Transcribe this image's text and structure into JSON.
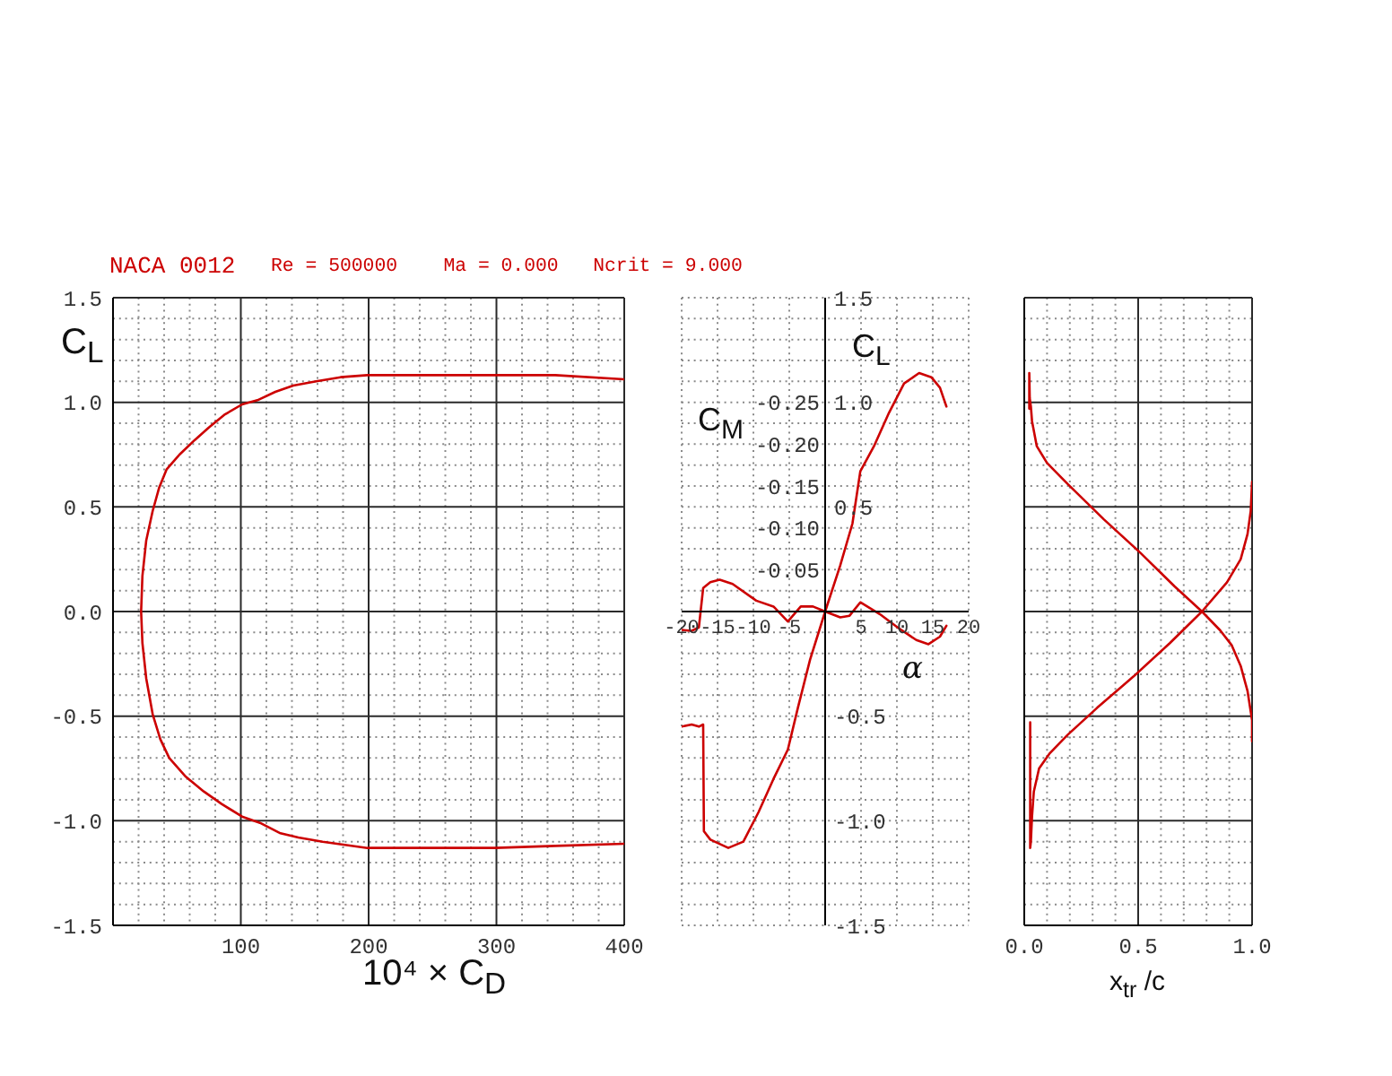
{
  "chart_data": [
    {
      "type": "line",
      "title": "NACA 0012",
      "subtitle": "Re = 500000    Ma = 0.000   Ncrit = 9.000",
      "xlabel": "10⁴ × C$_{D}$",
      "ylabel": "C$_{L}$",
      "x": [
        400,
        346,
        299,
        250,
        199,
        164,
        145,
        131,
        115,
        101,
        85,
        71,
        57,
        44,
        37,
        31,
        26,
        23,
        22,
        23,
        26,
        31,
        36,
        42,
        52,
        64,
        75,
        87,
        101,
        113,
        127,
        141,
        159,
        178,
        199,
        250,
        299,
        346,
        400
      ],
      "series": [
        {
          "color": "#cc0000",
          "values": [
            -1.11,
            -1.12,
            -1.13,
            -1.13,
            -1.13,
            -1.1,
            -1.08,
            -1.06,
            -1.01,
            -0.98,
            -0.92,
            -0.86,
            -0.79,
            -0.7,
            -0.61,
            -0.49,
            -0.32,
            -0.15,
            0,
            0.17,
            0.34,
            0.48,
            0.59,
            0.68,
            0.75,
            0.82,
            0.88,
            0.94,
            0.99,
            1.01,
            1.05,
            1.08,
            1.1,
            1.12,
            1.13,
            1.13,
            1.13,
            1.13,
            1.11
          ]
        }
      ],
      "xlim": [
        0,
        400
      ],
      "xticks": [
        {
          "value": 20,
          "label": null
        },
        {
          "value": 40,
          "label": null
        },
        {
          "value": 60,
          "label": null
        },
        {
          "value": 80,
          "label": null
        },
        100,
        {
          "value": 120,
          "label": null
        },
        {
          "value": 140,
          "label": null
        },
        {
          "value": 160,
          "label": null
        },
        {
          "value": 180,
          "label": null
        },
        200,
        {
          "value": 220,
          "label": null
        },
        {
          "value": 240,
          "label": null
        },
        {
          "value": 260,
          "label": null
        },
        {
          "value": 280,
          "label": null
        },
        300,
        {
          "value": 320,
          "label": null
        },
        {
          "value": 340,
          "label": null
        },
        {
          "value": 360,
          "label": null
        },
        {
          "value": 380,
          "label": null
        },
        400
      ],
      "ylim": [
        -1.5,
        1.5
      ],
      "yticks": [
        -1.5,
        {
          "value": -1.4,
          "label": null
        },
        {
          "value": -1.3,
          "label": null
        },
        {
          "value": -1.2,
          "label": null
        },
        {
          "value": -1.1,
          "label": null
        },
        {
          "value": -1,
          "label": "-1.0"
        },
        {
          "value": -0.9,
          "label": null
        },
        {
          "value": -0.8,
          "label": null
        },
        {
          "value": -0.7,
          "label": null
        },
        {
          "value": -0.6,
          "label": null
        },
        -0.5,
        {
          "value": -0.4,
          "label": null
        },
        {
          "value": -0.3,
          "label": null
        },
        {
          "value": -0.2,
          "label": null
        },
        {
          "value": -0.1,
          "label": null
        },
        {
          "value": 0,
          "label": "0.0"
        },
        {
          "value": 0.1,
          "label": null
        },
        {
          "value": 0.2,
          "label": null
        },
        {
          "value": 0.3,
          "label": null
        },
        {
          "value": 0.4,
          "label": null
        },
        0.5,
        {
          "value": 0.6,
          "label": null
        },
        {
          "value": 0.7,
          "label": null
        },
        {
          "value": 0.8,
          "label": null
        },
        {
          "value": 0.9,
          "label": null
        },
        {
          "value": 1,
          "label": "1.0"
        },
        {
          "value": 1.1,
          "label": null
        },
        {
          "value": 1.2,
          "label": null
        },
        {
          "value": 1.3,
          "label": null
        },
        {
          "value": 1.4,
          "label": null
        },
        1.5
      ],
      "grid": true
    },
    {
      "type": "line",
      "xlabel": "α",
      "ylabel": "C$_{L}$",
      "y2label": "C$_{M}$",
      "series": [
        {
          "color": "#cc0000",
          "x": [
            -20,
            -18.6,
            -17.6,
            -17,
            -16.9,
            -16,
            -13.5,
            -11.4,
            -9.3,
            -7.2,
            -5.2,
            -3.8,
            -2.1,
            0,
            2.1,
            3.8,
            4.9,
            6.8,
            8.9,
            11,
            13.1,
            14.8,
            16,
            16.9
          ],
          "values": [
            -0.55,
            -0.54,
            -0.55,
            -0.54,
            -1.05,
            -1.09,
            -1.13,
            -1.1,
            -0.96,
            -0.8,
            -0.66,
            -0.46,
            -0.23,
            0,
            0.22,
            0.42,
            0.67,
            0.79,
            0.95,
            1.09,
            1.14,
            1.12,
            1.07,
            0.98
          ]
        },
        {
          "color": "#cc0000",
          "axis": "y2",
          "x": [
            -20,
            -18.6,
            -17.6,
            -17,
            -16,
            -14.7,
            -12.9,
            -9.6,
            -7.2,
            -5.2,
            -3.4,
            -1.7,
            0,
            2.1,
            3.4,
            4.9,
            7.6,
            10.1,
            12.7,
            14.4,
            16,
            16.9
          ],
          "values": [
            0.022,
            0.023,
            0.019,
            -0.028,
            -0.035,
            -0.038,
            -0.033,
            -0.013,
            -0.006,
            0.012,
            -0.006,
            -0.006,
            0,
            0.007,
            0.005,
            -0.011,
            0.003,
            0.019,
            0.034,
            0.039,
            0.03,
            0.017
          ]
        }
      ],
      "xlim": [
        -20,
        20
      ],
      "xticks": [
        -20,
        -15,
        -10,
        -5,
        5,
        10,
        15,
        20
      ],
      "ylim": [
        -1.5,
        1.5
      ],
      "yticks": [
        -1.5,
        {
          "value": -1.4,
          "label": null
        },
        {
          "value": -1.3,
          "label": null
        },
        {
          "value": -1.2,
          "label": null
        },
        {
          "value": -1.1,
          "label": null
        },
        {
          "value": -1,
          "label": "-1.0"
        },
        {
          "value": -0.9,
          "label": null
        },
        {
          "value": -0.8,
          "label": null
        },
        {
          "value": -0.7,
          "label": null
        },
        {
          "value": -0.6,
          "label": null
        },
        -0.5,
        {
          "value": -0.4,
          "label": null
        },
        {
          "value": -0.3,
          "label": null
        },
        {
          "value": -0.2,
          "label": null
        },
        {
          "value": -0.1,
          "label": null
        },
        {
          "value": 0.1,
          "label": null
        },
        {
          "value": 0.2,
          "label": null
        },
        {
          "value": 0.3,
          "label": null
        },
        {
          "value": 0.4,
          "label": null
        },
        0.5,
        {
          "value": 0.6,
          "label": null
        },
        {
          "value": 0.7,
          "label": null
        },
        {
          "value": 0.8,
          "label": null
        },
        {
          "value": 0.9,
          "label": null
        },
        {
          "value": 1,
          "label": "1.0"
        },
        {
          "value": 1.1,
          "label": null
        },
        {
          "value": 1.2,
          "label": null
        },
        {
          "value": 1.3,
          "label": null
        },
        {
          "value": 1.4,
          "label": null
        },
        1.5
      ],
      "y2lim": [
        0.375,
        -0.375
      ],
      "y2ticks": [
        -0.25,
        {
          "value": -0.2,
          "label": "-0.20"
        },
        -0.15,
        {
          "value": -0.1,
          "label": "-0.10"
        },
        -0.05
      ],
      "grid": true
    },
    {
      "type": "line",
      "xlabel": "x$_{tr}$ /c",
      "series": [
        {
          "color": "#cc0000",
          "x": [
            1,
            1,
            0.98,
            0.95,
            0.91,
            0.86,
            0.78,
            0.66,
            0.51,
            0.35,
            0.19,
            0.1,
            0.055,
            0.034,
            0.029,
            0.024,
            0.022,
            0.022
          ],
          "values": [
            -0.62,
            -0.52,
            -0.38,
            -0.26,
            -0.16,
            -0.09,
            0,
            0.12,
            0.28,
            0.44,
            0.61,
            0.71,
            0.79,
            0.91,
            0.98,
            1.02,
            1.14,
            0.97
          ]
        },
        {
          "color": "#cc0000",
          "x": [
            0.026,
            0.026,
            0.029,
            0.034,
            0.042,
            0.065,
            0.11,
            0.19,
            0.32,
            0.48,
            0.64,
            0.78,
            0.89,
            0.95,
            0.98,
            0.994,
            1
          ],
          "values": [
            -0.53,
            -1.13,
            -1.1,
            -0.98,
            -0.86,
            -0.75,
            -0.68,
            -0.59,
            -0.46,
            -0.31,
            -0.15,
            0,
            0.14,
            0.25,
            0.37,
            0.48,
            0.62
          ]
        }
      ],
      "xlim": [
        0,
        1
      ],
      "xticks": [
        {
          "value": 0,
          "label": "0.0"
        },
        {
          "value": 0.1,
          "label": null
        },
        {
          "value": 0.2,
          "label": null
        },
        {
          "value": 0.3,
          "label": null
        },
        {
          "value": 0.4,
          "label": null
        },
        0.5,
        {
          "value": 0.6,
          "label": null
        },
        {
          "value": 0.7,
          "label": null
        },
        {
          "value": 0.8,
          "label": null
        },
        {
          "value": 0.9,
          "label": null
        },
        {
          "value": 1,
          "label": "1.0"
        }
      ],
      "ylim": [
        -1.5,
        1.5
      ],
      "yticks": [
        -1.5,
        {
          "value": -1.4,
          "label": null
        },
        {
          "value": -1.3,
          "label": null
        },
        {
          "value": -1.2,
          "label": null
        },
        {
          "value": -1.1,
          "label": null
        },
        -1,
        {
          "value": -0.9,
          "label": null
        },
        {
          "value": -0.8,
          "label": null
        },
        {
          "value": -0.7,
          "label": null
        },
        {
          "value": -0.6,
          "label": null
        },
        -0.5,
        {
          "value": -0.4,
          "label": null
        },
        {
          "value": -0.3,
          "label": null
        },
        {
          "value": -0.2,
          "label": null
        },
        {
          "value": -0.1,
          "label": null
        },
        0,
        {
          "value": 0.1,
          "label": null
        },
        {
          "value": 0.2,
          "label": null
        },
        {
          "value": 0.3,
          "label": null
        },
        {
          "value": 0.4,
          "label": null
        },
        0.5,
        {
          "value": 0.6,
          "label": null
        },
        {
          "value": 0.7,
          "label": null
        },
        {
          "value": 0.8,
          "label": null
        },
        {
          "value": 0.9,
          "label": null
        },
        1,
        {
          "value": 1.1,
          "label": null
        },
        {
          "value": 1.2,
          "label": null
        },
        {
          "value": 1.3,
          "label": null
        },
        {
          "value": 1.4,
          "label": null
        },
        1.5
      ],
      "tick_labels": "x",
      "grid": true
    }
  ]
}
